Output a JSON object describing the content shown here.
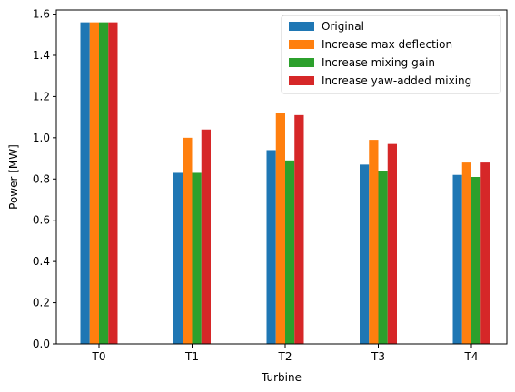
{
  "chart_data": {
    "type": "bar",
    "title": "",
    "xlabel": "Turbine",
    "ylabel": "Power [MW]",
    "categories": [
      "T0",
      "T1",
      "T2",
      "T3",
      "T4"
    ],
    "ylim": [
      0,
      1.62
    ],
    "yticks": [
      "0.0",
      "0.2",
      "0.4",
      "0.6",
      "0.8",
      "1.0",
      "1.2",
      "1.4",
      "1.6"
    ],
    "grid": false,
    "legend_position": "top-right",
    "series": [
      {
        "name": "Original",
        "color": "#1f77b4",
        "values": [
          1.56,
          0.83,
          0.94,
          0.87,
          0.82
        ]
      },
      {
        "name": "Increase max deflection",
        "color": "#ff7f0e",
        "values": [
          1.56,
          1.0,
          1.12,
          0.99,
          0.88
        ]
      },
      {
        "name": "Increase mixing gain",
        "color": "#2ca02c",
        "values": [
          1.56,
          0.83,
          0.89,
          0.84,
          0.81
        ]
      },
      {
        "name": "Increase yaw-added mixing",
        "color": "#d62728",
        "values": [
          1.56,
          1.04,
          1.11,
          0.97,
          0.88
        ]
      }
    ]
  }
}
